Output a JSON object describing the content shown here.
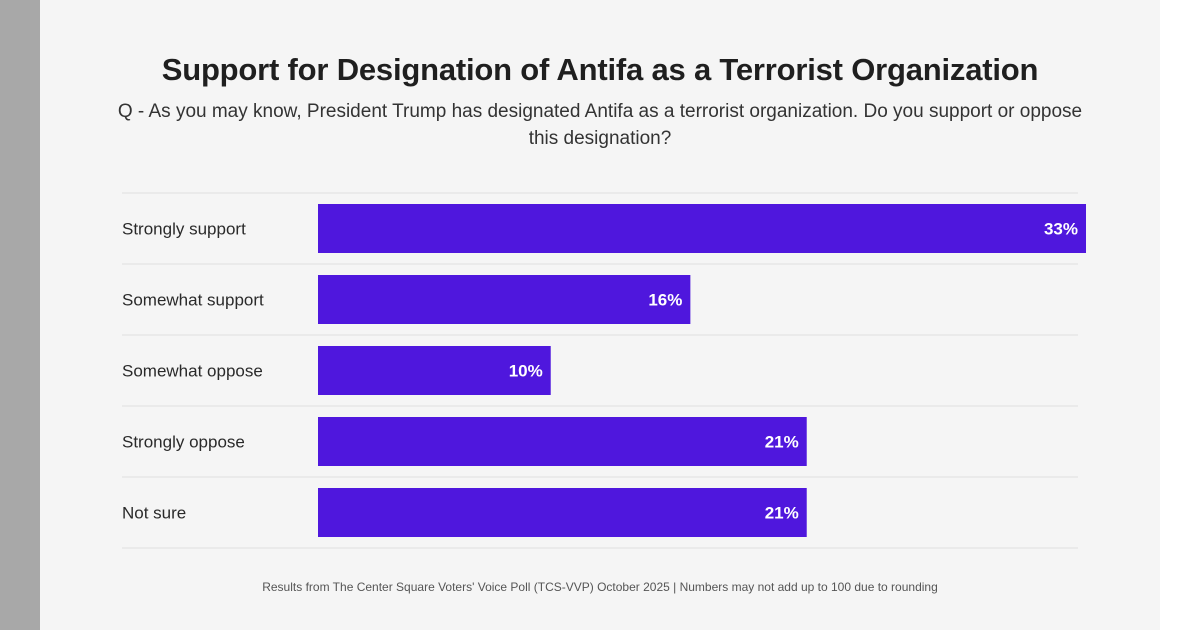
{
  "title": "Support for Designation of Antifa as a Terrorist Organization",
  "subtitle": "Q - As you may know, President Trump has designated Antifa as a terrorist organization. Do you support or oppose this designation?",
  "footer": "Results from The Center Square Voters' Voice Poll (TCS-VVP) October 2025 | Numbers may not add up to 100 due to rounding",
  "colors": {
    "bar": "#4f17dd",
    "divider": "#dedede"
  },
  "chart_data": {
    "type": "bar",
    "orientation": "horizontal",
    "categories": [
      "Strongly support",
      "Somewhat support",
      "Somewhat oppose",
      "Strongly oppose",
      "Not sure"
    ],
    "values": [
      33,
      16,
      10,
      21,
      21
    ],
    "data_labels": [
      "33%",
      "16%",
      "10%",
      "21%",
      "21%"
    ],
    "title": "Support for Designation of Antifa as a Terrorist Organization",
    "xlabel": "",
    "ylabel": "",
    "xlim": [
      0,
      33
    ],
    "grid": false
  }
}
